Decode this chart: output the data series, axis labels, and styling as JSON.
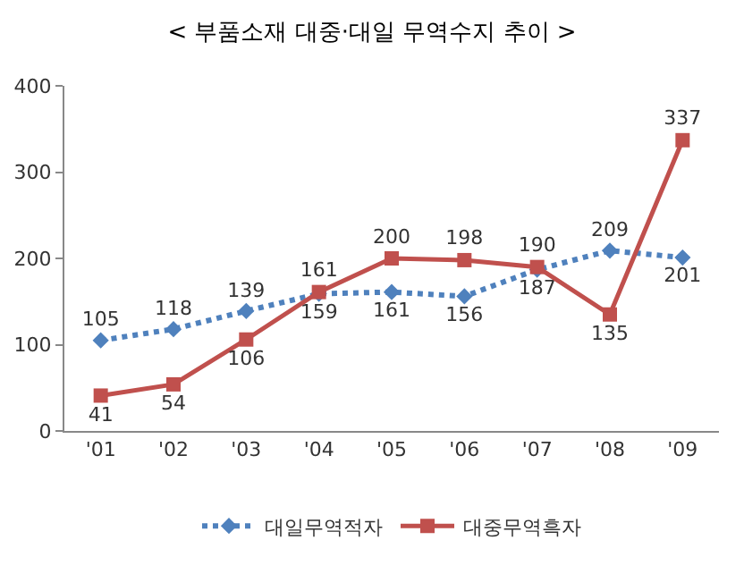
{
  "chart_data": {
    "type": "line",
    "title": "< 부품소재 대중·대일 무역수지 추이 >",
    "categories": [
      "'01",
      "'02",
      "'03",
      "'04",
      "'05",
      "'06",
      "'07",
      "'08",
      "'09"
    ],
    "series": [
      {
        "name": "대일무역적자",
        "color": "#4f81bd",
        "marker": "diamond",
        "line_style": "dotted",
        "values": [
          105,
          118,
          139,
          159,
          161,
          156,
          187,
          209,
          201
        ]
      },
      {
        "name": "대중무역흑자",
        "color": "#c0504d",
        "marker": "square",
        "line_style": "solid",
        "values": [
          41,
          54,
          106,
          161,
          200,
          198,
          190,
          135,
          337
        ]
      }
    ],
    "ylim": [
      0,
      400
    ],
    "yticks": [
      0,
      100,
      200,
      300,
      400
    ],
    "grid": false,
    "legend": "bottom",
    "data_labels": true
  }
}
